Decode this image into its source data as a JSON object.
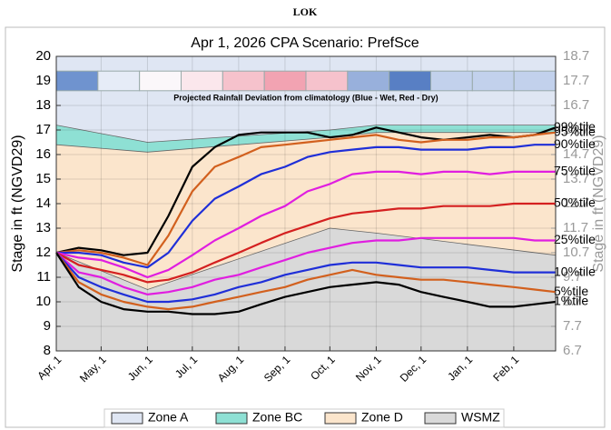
{
  "header": {
    "title": "LOK"
  },
  "chart_data": {
    "type": "line",
    "title": "Apr 1, 2026  CPA Scenario: PrefSce",
    "ylabel": "Stage in ft (NGVD29)",
    "y2label": "Stage in ft (NGVD29)",
    "ylim": [
      8,
      20
    ],
    "yticks": [
      8,
      9,
      10,
      11,
      12,
      13,
      14,
      15,
      16,
      17,
      18,
      19,
      20
    ],
    "y2lim": [
      6.7,
      18.7
    ],
    "y2ticks": [
      6.7,
      7.7,
      8.7,
      9.7,
      10.7,
      11.7,
      12.7,
      13.7,
      14.7,
      15.7,
      16.7,
      17.7,
      18.7
    ],
    "xlim": [
      0,
      334
    ],
    "xticks": [
      {
        "value": 0,
        "label": "Apr, 1"
      },
      {
        "value": 30,
        "label": "May, 1"
      },
      {
        "value": 61,
        "label": "Jun, 1"
      },
      {
        "value": 91,
        "label": "Jul, 1"
      },
      {
        "value": 122,
        "label": "Aug, 1"
      },
      {
        "value": 153,
        "label": "Sep, 1"
      },
      {
        "value": 183,
        "label": "Oct, 1"
      },
      {
        "value": 214,
        "label": "Nov, 1"
      },
      {
        "value": 244,
        "label": "Dec, 1"
      },
      {
        "value": 275,
        "label": "Jan, 1"
      },
      {
        "value": 306,
        "label": "Feb, 1"
      }
    ],
    "grid": true,
    "rainfall": {
      "label": "Projected Rainfall Deviation from climatology (Blue - Wet, Red - Dry)",
      "colors": [
        "#6f93cf",
        "#e6ecf7",
        "#fbf7fa",
        "#fbe7ec",
        "#f6c2cc",
        "#f2a3b2",
        "#f6c2cc",
        "#98b0dc",
        "#587fc4",
        "#c2d1ec",
        "#c2d1ec",
        "#c2d1ec"
      ]
    },
    "zone_x": [
      0,
      61,
      183,
      214,
      334
    ],
    "zones": [
      {
        "name": "Zone A",
        "color": "#dfe6f3",
        "values": [
          17.2,
          16.5,
          17.0,
          17.2,
          17.2
        ]
      },
      {
        "name": "Zone BC",
        "color": "#8ee0d4",
        "values": [
          16.4,
          16.1,
          16.7,
          16.9,
          16.9
        ]
      },
      {
        "name": "Zone D",
        "color": "#fbe5cc",
        "values": [
          12.0,
          10.5,
          13.0,
          12.8,
          11.9
        ]
      },
      {
        "name": "WSMZ",
        "color": "#d9d9d9"
      }
    ],
    "x": [
      0,
      15,
      30,
      45,
      61,
      75,
      91,
      106,
      122,
      137,
      153,
      168,
      183,
      198,
      214,
      229,
      244,
      259,
      275,
      290,
      306,
      320,
      334
    ],
    "series": [
      {
        "name": "99%tile",
        "color": "#000000",
        "values": [
          12.0,
          12.2,
          12.1,
          11.9,
          12.0,
          13.5,
          15.5,
          16.3,
          16.8,
          16.9,
          16.9,
          16.9,
          16.7,
          16.8,
          17.1,
          16.9,
          16.7,
          16.6,
          16.7,
          16.8,
          16.7,
          16.8,
          17.1
        ]
      },
      {
        "name": "95%tile",
        "color": "#d2601e",
        "values": [
          12.0,
          12.1,
          12.0,
          11.8,
          11.5,
          12.7,
          14.5,
          15.5,
          15.9,
          16.3,
          16.4,
          16.5,
          16.6,
          16.7,
          16.8,
          16.6,
          16.5,
          16.6,
          16.6,
          16.7,
          16.7,
          16.8,
          16.9
        ]
      },
      {
        "name": "90%tile",
        "color": "#1f2fd8",
        "values": [
          12.0,
          12.0,
          11.9,
          11.6,
          11.4,
          12.0,
          13.3,
          14.2,
          14.7,
          15.2,
          15.5,
          15.9,
          16.1,
          16.2,
          16.3,
          16.3,
          16.2,
          16.2,
          16.2,
          16.3,
          16.3,
          16.4,
          16.4
        ]
      },
      {
        "name": "75%tile",
        "color": "#e01ee0",
        "values": [
          12.0,
          11.8,
          11.7,
          11.4,
          11.0,
          11.3,
          11.9,
          12.5,
          13.0,
          13.5,
          13.9,
          14.5,
          14.8,
          15.2,
          15.3,
          15.3,
          15.2,
          15.3,
          15.3,
          15.2,
          15.3,
          15.3,
          15.3
        ]
      },
      {
        "name": "50%tile",
        "color": "#d42020",
        "values": [
          12.0,
          11.5,
          11.3,
          11.1,
          10.8,
          10.9,
          11.2,
          11.6,
          12.0,
          12.4,
          12.8,
          13.1,
          13.4,
          13.6,
          13.7,
          13.8,
          13.8,
          13.9,
          13.9,
          13.9,
          14.0,
          14.0,
          14.0
        ]
      },
      {
        "name": "25%tile",
        "color": "#e01ee0",
        "values": [
          12.0,
          11.2,
          11.0,
          10.6,
          10.3,
          10.4,
          10.6,
          10.9,
          11.1,
          11.4,
          11.7,
          12.0,
          12.2,
          12.4,
          12.5,
          12.5,
          12.6,
          12.6,
          12.6,
          12.6,
          12.6,
          12.5,
          12.5
        ]
      },
      {
        "name": "10%tile",
        "color": "#1f2fd8",
        "values": [
          12.0,
          11.0,
          10.6,
          10.3,
          10.0,
          10.0,
          10.1,
          10.3,
          10.6,
          10.8,
          11.1,
          11.3,
          11.5,
          11.6,
          11.6,
          11.5,
          11.4,
          11.4,
          11.4,
          11.3,
          11.2,
          11.2,
          11.2
        ]
      },
      {
        "name": "5%tile",
        "color": "#d2601e",
        "values": [
          12.0,
          10.8,
          10.3,
          10.0,
          9.8,
          9.7,
          9.8,
          10.0,
          10.2,
          10.4,
          10.6,
          10.9,
          11.1,
          11.3,
          11.1,
          11.0,
          10.9,
          10.9,
          10.8,
          10.7,
          10.6,
          10.5,
          10.4
        ]
      },
      {
        "name": "1%tile",
        "color": "#000000",
        "values": [
          12.0,
          10.6,
          10.0,
          9.7,
          9.6,
          9.6,
          9.5,
          9.5,
          9.6,
          9.9,
          10.2,
          10.4,
          10.6,
          10.7,
          10.8,
          10.7,
          10.4,
          10.2,
          10.0,
          9.8,
          9.8,
          9.9,
          10.0
        ]
      }
    ]
  }
}
